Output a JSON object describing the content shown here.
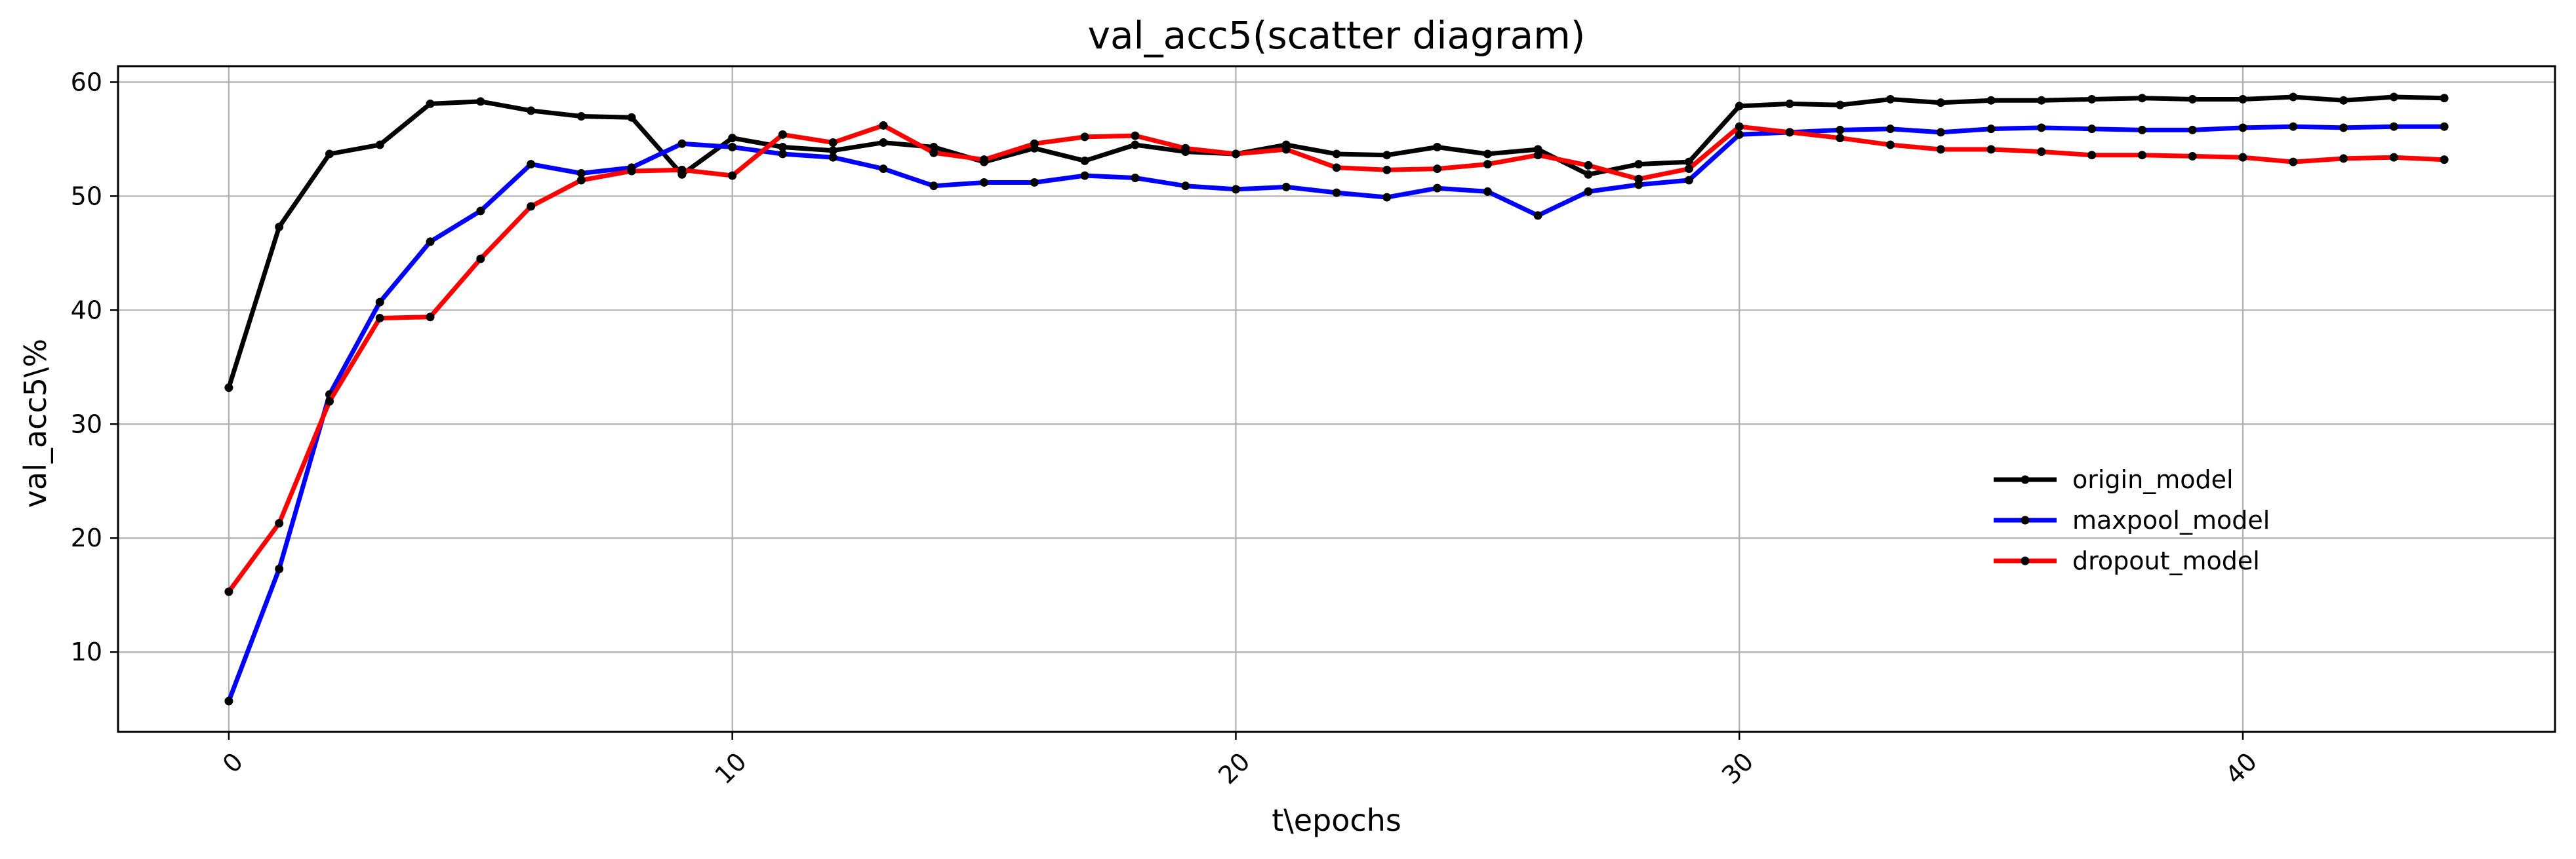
{
  "chart_data": {
    "type": "line",
    "title": "val_acc5(scatter diagram)",
    "xlabel": "t\\epochs",
    "ylabel": "val_acc5\\%",
    "xlim": [
      -2.2,
      46.2
    ],
    "ylim": [
      3.0,
      61.4
    ],
    "xticks": [
      0,
      10,
      20,
      30,
      40
    ],
    "yticks": [
      10,
      20,
      30,
      40,
      50,
      60
    ],
    "grid": true,
    "legend_position": "right",
    "x": [
      0,
      1,
      2,
      3,
      4,
      5,
      6,
      7,
      8,
      9,
      10,
      11,
      12,
      13,
      14,
      15,
      16,
      17,
      18,
      19,
      20,
      21,
      22,
      23,
      24,
      25,
      26,
      27,
      28,
      29,
      30,
      31,
      32,
      33,
      34,
      35,
      36,
      37,
      38,
      39,
      40,
      41,
      42,
      43,
      44
    ],
    "series": [
      {
        "name": "origin_model",
        "color": "#000000",
        "values": [
          33.2,
          47.3,
          53.7,
          54.5,
          58.1,
          58.3,
          57.5,
          57.0,
          56.9,
          51.9,
          55.1,
          54.3,
          54.0,
          54.7,
          54.3,
          53.0,
          54.2,
          53.1,
          54.5,
          53.9,
          53.7,
          54.5,
          53.7,
          53.6,
          54.3,
          53.7,
          54.1,
          51.9,
          52.8,
          53.0,
          57.9,
          58.1,
          58.0,
          58.5,
          58.2,
          58.4,
          58.4,
          58.5,
          58.6,
          58.5,
          58.5,
          58.7,
          58.4,
          58.7,
          58.6
        ]
      },
      {
        "name": "maxpool_model",
        "color": "#0000ff",
        "values": [
          5.7,
          17.3,
          32.6,
          40.7,
          46.0,
          48.7,
          52.8,
          52.0,
          52.5,
          54.6,
          54.3,
          53.7,
          53.4,
          52.4,
          50.9,
          51.2,
          51.2,
          51.8,
          51.6,
          50.9,
          50.6,
          50.8,
          50.3,
          49.9,
          50.7,
          50.4,
          48.3,
          50.4,
          51.0,
          51.4,
          55.4,
          55.6,
          55.8,
          55.9,
          55.6,
          55.9,
          56.0,
          55.9,
          55.8,
          55.8,
          56.0,
          56.1,
          56.0,
          56.1,
          56.1
        ]
      },
      {
        "name": "dropout_model",
        "color": "#ff0000",
        "values": [
          15.3,
          21.3,
          32.0,
          39.3,
          39.4,
          44.5,
          49.1,
          51.4,
          52.2,
          52.3,
          51.8,
          55.4,
          54.7,
          56.2,
          53.8,
          53.2,
          54.6,
          55.2,
          55.3,
          54.2,
          53.7,
          54.1,
          52.5,
          52.3,
          52.4,
          52.8,
          53.6,
          52.7,
          51.5,
          52.4,
          56.1,
          55.6,
          55.1,
          54.5,
          54.1,
          54.1,
          53.9,
          53.6,
          53.6,
          53.5,
          53.4,
          53.0,
          53.3,
          53.4,
          53.2
        ]
      }
    ]
  }
}
